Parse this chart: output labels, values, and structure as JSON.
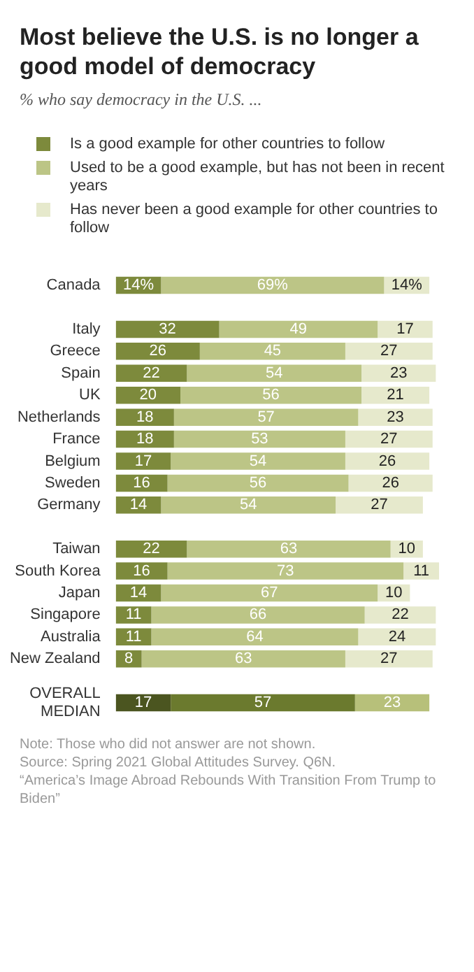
{
  "chart_data": {
    "type": "bar",
    "orientation": "horizontal",
    "stacked": true,
    "title": "Most believe the U.S. is no longer a good model of democracy",
    "subtitle": "% who say democracy in the U.S. ...",
    "categories": [
      "Canada",
      null,
      "Italy",
      "Greece",
      "Spain",
      "UK",
      "Netherlands",
      "France",
      "Belgium",
      "Sweden",
      "Germany",
      null,
      "Taiwan",
      "South Korea",
      "Japan",
      "Singapore",
      "Australia",
      "New Zealand",
      null,
      "OVERALL MEDIAN"
    ],
    "series": [
      {
        "name": "Is a good example for other countries to follow",
        "color": "#7d8a3c",
        "colors": [
          "#7d8a3c",
          null,
          "#7d8a3c",
          "#7d8a3c",
          "#7d8a3c",
          "#7d8a3c",
          "#7d8a3c",
          "#7d8a3c",
          "#7d8a3c",
          "#7d8a3c",
          "#7d8a3c",
          null,
          "#7d8a3c",
          "#7d8a3c",
          "#7d8a3c",
          "#7d8a3c",
          "#7d8a3c",
          "#7d8a3c",
          null,
          "#4b5520"
        ],
        "values": [
          14,
          null,
          32,
          26,
          22,
          20,
          18,
          18,
          17,
          16,
          14,
          null,
          22,
          16,
          14,
          11,
          11,
          8,
          null,
          17
        ],
        "value_labels": [
          "14%",
          null,
          "32",
          "26",
          "22",
          "20",
          "18",
          "18",
          "17",
          "16",
          "14",
          null,
          "22",
          "16",
          "14",
          "11",
          "11",
          "8",
          null,
          "17"
        ]
      },
      {
        "name": "Used to be a good example, but has not been in recent years",
        "color": "#bcc586",
        "colors": [
          "#bcc586",
          null,
          "#bcc586",
          "#bcc586",
          "#bcc586",
          "#bcc586",
          "#bcc586",
          "#bcc586",
          "#bcc586",
          "#bcc586",
          "#bcc586",
          null,
          "#bcc586",
          "#bcc586",
          "#bcc586",
          "#bcc586",
          "#bcc586",
          "#bcc586",
          null,
          "#6b7a2e"
        ],
        "values": [
          69,
          null,
          49,
          45,
          54,
          56,
          57,
          53,
          54,
          56,
          54,
          null,
          63,
          73,
          67,
          66,
          64,
          63,
          null,
          57
        ],
        "value_labels": [
          "69%",
          null,
          "49",
          "45",
          "54",
          "56",
          "57",
          "53",
          "54",
          "56",
          "54",
          null,
          "63",
          "73",
          "67",
          "66",
          "64",
          "63",
          null,
          "57"
        ]
      },
      {
        "name": "Has never been a good example for other countries to follow",
        "color": "#e6e9cc",
        "colors": [
          "#e6e9cc",
          null,
          "#e6e9cc",
          "#e6e9cc",
          "#e6e9cc",
          "#e6e9cc",
          "#e6e9cc",
          "#e6e9cc",
          "#e6e9cc",
          "#e6e9cc",
          "#e6e9cc",
          null,
          "#e6e9cc",
          "#e6e9cc",
          "#e6e9cc",
          "#e6e9cc",
          "#e6e9cc",
          "#e6e9cc",
          null,
          "#b7c07a"
        ],
        "values": [
          14,
          null,
          17,
          27,
          23,
          21,
          23,
          27,
          26,
          26,
          27,
          null,
          10,
          11,
          10,
          22,
          24,
          27,
          null,
          23
        ],
        "value_labels": [
          "14%",
          null,
          "17",
          "27",
          "23",
          "21",
          "23",
          "27",
          "26",
          "26",
          "27",
          null,
          "10",
          "11",
          "10",
          "22",
          "24",
          "27",
          null,
          "23"
        ]
      }
    ],
    "legend": "top left",
    "annotations": [
      "Note: Those who did not answer are not shown.",
      "Source: Spring 2021 Global Attitudes Survey. Q6N.",
      "“America’s Image Abroad Rebounds With Transition From Trump to Biden”"
    ]
  }
}
